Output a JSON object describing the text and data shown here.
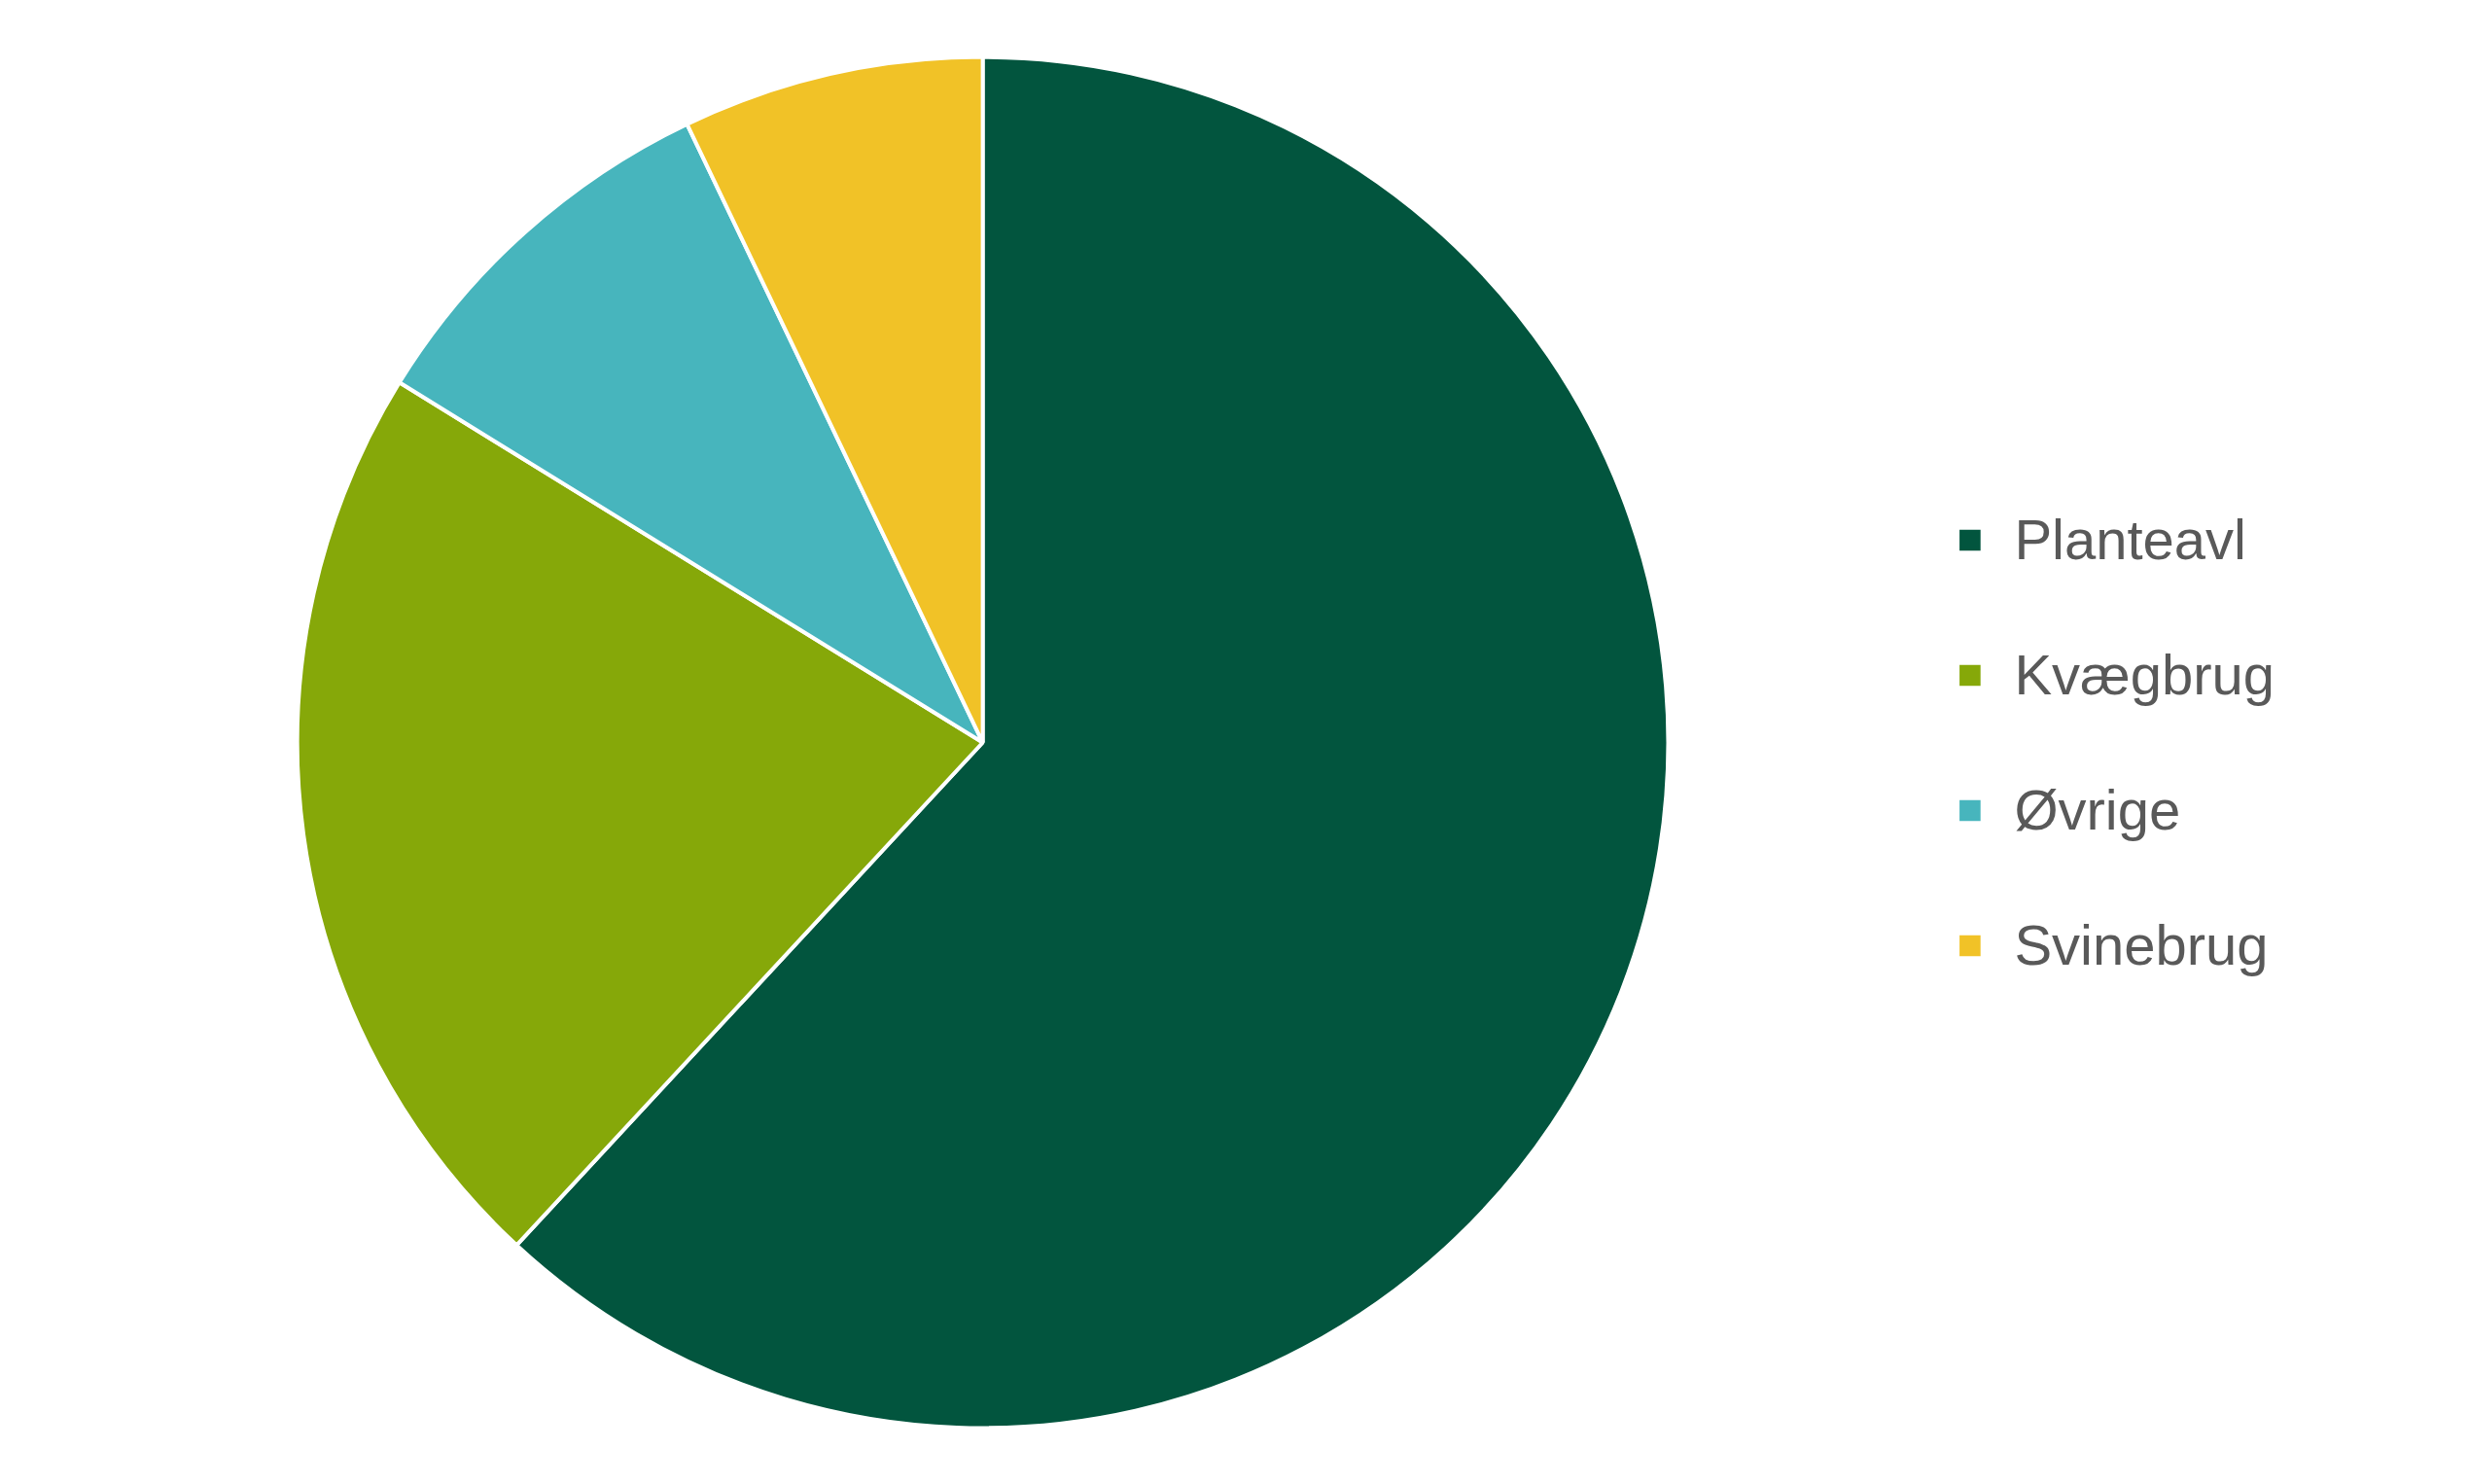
{
  "chart_data": {
    "type": "pie",
    "categories": [
      "Planteavl",
      "Kvægbrug",
      "Øvrige",
      "Svinebrug"
    ],
    "values": [
      61.9,
      21.9,
      9.1,
      7.1
    ],
    "colors": [
      "#02553e",
      "#86a809",
      "#47b5bd",
      "#f1c227"
    ],
    "legend": "right"
  }
}
